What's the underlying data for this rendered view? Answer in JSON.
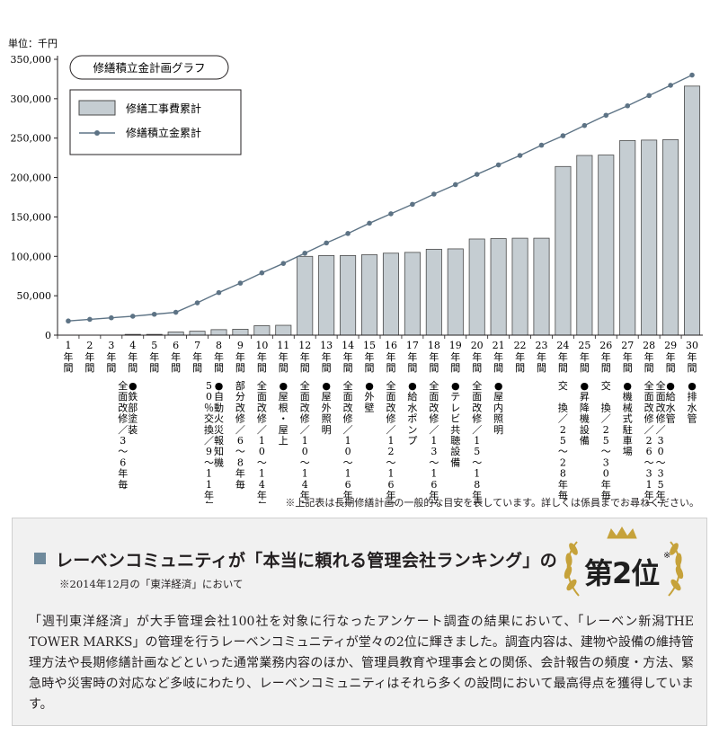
{
  "colors": {
    "bar_fill": "#c5cdd2",
    "bar_stroke": "#4a4a4a",
    "line": "#5d7385",
    "accent": "#6f8a9c",
    "gold": "#c6a23a"
  },
  "chart_data": {
    "type": "bar+line",
    "title": "修繕積立金計画グラフ",
    "unit_label": "単位：千円",
    "ylim": [
      0,
      350000
    ],
    "y_ticks": [
      "0",
      "50,000",
      "100,000",
      "150,000",
      "200,000",
      "250,000",
      "300,000",
      "350,000"
    ],
    "y_tick_values": [
      0,
      50000,
      100000,
      150000,
      200000,
      250000,
      300000,
      350000
    ],
    "categories": [
      "1年間",
      "2年間",
      "3年間",
      "4年間",
      "5年間",
      "6年間",
      "7年間",
      "8年間",
      "9年間",
      "10年間",
      "11年間",
      "12年間",
      "13年間",
      "14年間",
      "15年間",
      "16年間",
      "17年間",
      "18年間",
      "19年間",
      "20年間",
      "21年間",
      "22年間",
      "23年間",
      "24年間",
      "25年間",
      "26年間",
      "27年間",
      "28年間",
      "29年間",
      "30年間"
    ],
    "year_numbers": [
      "1",
      "2",
      "3",
      "4",
      "5",
      "6",
      "7",
      "8",
      "9",
      "10",
      "11",
      "12",
      "13",
      "14",
      "15",
      "16",
      "17",
      "18",
      "19",
      "20",
      "21",
      "22",
      "23",
      "24",
      "25",
      "26",
      "27",
      "28",
      "29",
      "30"
    ],
    "year_suffix": [
      "年",
      "間"
    ],
    "series": [
      {
        "name": "修繕工事費累計",
        "kind": "bar",
        "values": [
          0,
          0,
          0,
          1000,
          1000,
          4000,
          5000,
          7000,
          7500,
          12000,
          12500,
          100000,
          101000,
          101000,
          102000,
          104000,
          105000,
          109000,
          109500,
          122000,
          122500,
          123000,
          123000,
          214000,
          228000,
          228500,
          247000,
          247500,
          248000,
          316000
        ]
      },
      {
        "name": "修繕積立金累計",
        "kind": "line",
        "values": [
          18000,
          20000,
          22000,
          24000,
          26500,
          29000,
          41000,
          54000,
          66000,
          79000,
          91000,
          104000,
          117000,
          129000,
          142000,
          154000,
          166000,
          179000,
          191000,
          204000,
          216000,
          228000,
          241000,
          253000,
          266000,
          279000,
          291000,
          304000,
          317000,
          330000
        ]
      }
    ],
    "annotations": [
      {
        "year": 4,
        "text": "●鉄部塗装",
        "cont": "全面改修／3〜6年毎"
      },
      {
        "year": 8,
        "text": "●自動火災報知機",
        "cont": "50％交換／9〜11年毎"
      },
      {
        "year": 9,
        "text": "",
        "cont": "部分改修／6〜8年毎"
      },
      {
        "year": 10,
        "text": "",
        "cont": "全面改修／10〜14年毎"
      },
      {
        "year": 11,
        "text": "●屋根・屋上",
        "cont": ""
      },
      {
        "year": 12,
        "text": "",
        "cont": "全面改修／10〜14年毎"
      },
      {
        "year": 13,
        "text": "●屋外照明",
        "cont": ""
      },
      {
        "year": 14,
        "text": "",
        "cont": "全面改修／10〜16年毎"
      },
      {
        "year": 15,
        "text": "●外壁",
        "cont": ""
      },
      {
        "year": 16,
        "text": "",
        "cont": "全面改修／12〜16年毎"
      },
      {
        "year": 17,
        "text": "●給水ポンプ",
        "cont": ""
      },
      {
        "year": 18,
        "text": "",
        "cont": "全面改修／13〜16年毎"
      },
      {
        "year": 19,
        "text": "●テレビ共聴設備",
        "cont": ""
      },
      {
        "year": 20,
        "text": "",
        "cont": "全面改修／15〜18年毎"
      },
      {
        "year": 21,
        "text": "●屋内照明",
        "cont": ""
      },
      {
        "year": 24,
        "text": "",
        "cont": "交　換／25〜28年毎"
      },
      {
        "year": 25,
        "text": "●昇降機設備",
        "cont": ""
      },
      {
        "year": 26,
        "text": "",
        "cont": "交　換／25〜30年毎"
      },
      {
        "year": 27,
        "text": "●機械式駐車場",
        "cont": ""
      },
      {
        "year": 28,
        "text": "",
        "cont": "全面改修／26〜31年毎"
      },
      {
        "year": 29,
        "text": "●給水管",
        "cont": "全面改修／30〜35年毎"
      },
      {
        "year": 30,
        "text": "●排水管",
        "cont": ""
      }
    ],
    "note": "※上記表は長期修繕計画の一般的な目安を表しています。詳しくは係員までお尋ねください。"
  },
  "ranking": {
    "title": "レーベンコミュニティが「本当に頼れる管理会社ランキング」の",
    "subtitle": "※2014年12月の「東洋経済」において",
    "rank_text": "第2位",
    "rank_mark": "※",
    "body": "「週刊東洋経済」が大手管理会社100社を対象に行なったアンケート調査の結果において、「レーベン新潟THE TOWER MARKS」の管理を行うレーベンコミュニティが堂々の2位に輝きました。調査内容は、建物や設備の維持管理方法や長期修繕計画などといった通常業務内容のほか、管理員教育や理事会との関係、会計報告の頻度・方法、緊急時や災害時の対応など多岐にわたり、レーベンコミュニティはそれら多くの設問において最高得点を獲得しています。"
  }
}
